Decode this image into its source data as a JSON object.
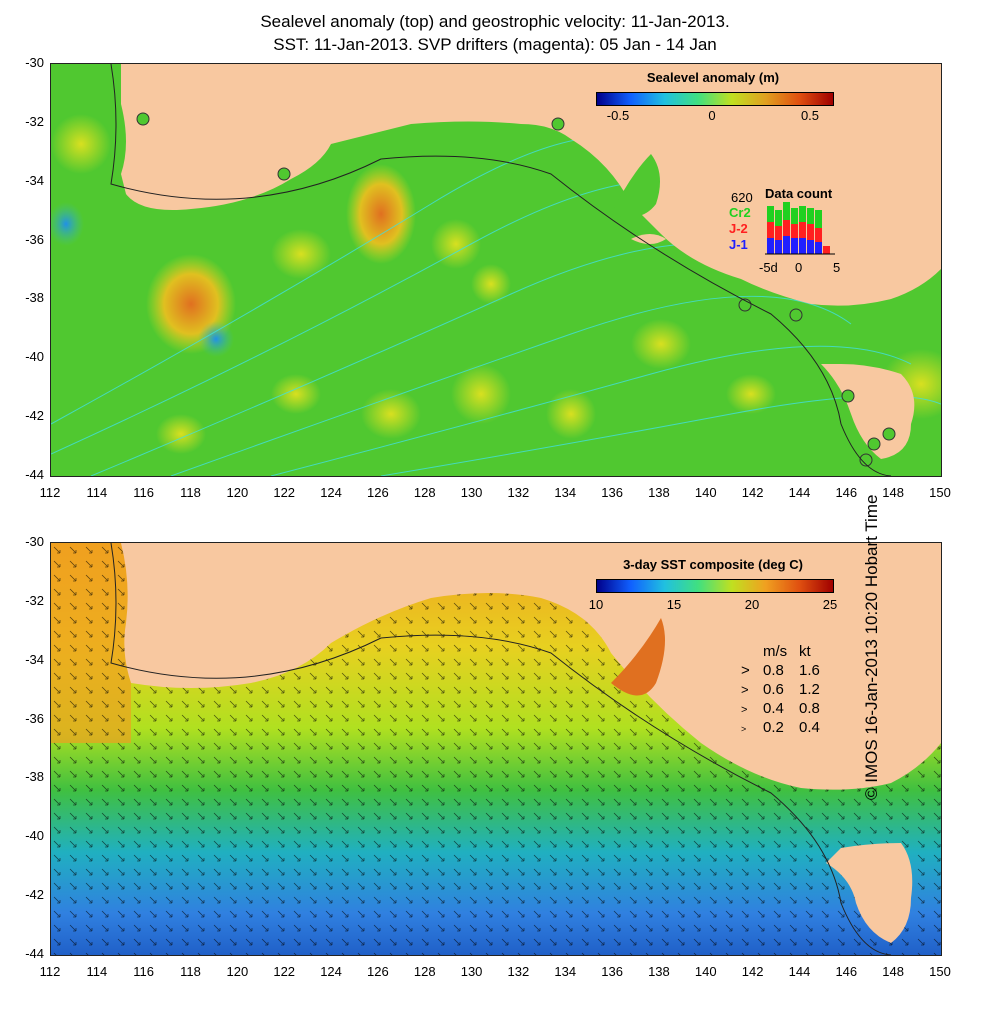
{
  "title_line1": "Sealevel anomaly (top) and geostrophic velocity: 11-Jan-2013.",
  "title_line2": "SST: 11-Jan-2013. SVP drifters (magenta): 05 Jan - 14 Jan",
  "credit": "© IMOS 16-Jan-2013 10:20 Hobart Time",
  "map": {
    "lon_ticks": [
      "112",
      "114",
      "116",
      "118",
      "120",
      "122",
      "124",
      "126",
      "128",
      "130",
      "132",
      "134",
      "136",
      "138",
      "140",
      "142",
      "144",
      "146",
      "148",
      "150"
    ],
    "lat_ticks": [
      "-30",
      "-32",
      "-34",
      "-36",
      "-38",
      "-40",
      "-42",
      "-44"
    ],
    "lon_range": [
      112,
      150
    ],
    "lat_range": [
      -44,
      -30
    ],
    "land_color": "#f8c8a0",
    "contour_color": "#40e0e0"
  },
  "sla_panel": {
    "colorbar_title": "Sealevel anomaly (m)",
    "colorbar_ticks": [
      "-0.5",
      "0",
      "0.5"
    ],
    "colorbar_range": [
      -0.6,
      0.6
    ],
    "data_count": {
      "title": "Data count",
      "max_label": "620",
      "series": [
        {
          "name": "Cr2",
          "color": "#20d020"
        },
        {
          "name": "J-2",
          "color": "#ff2020"
        },
        {
          "name": "J-1",
          "color": "#2020ff"
        }
      ],
      "x_ticks": [
        "-5d",
        "0",
        "5"
      ]
    }
  },
  "sst_panel": {
    "colorbar_title": "3-day SST composite (deg C)",
    "colorbar_ticks": [
      "10",
      "15",
      "20",
      "25"
    ],
    "colorbar_range": [
      10,
      25
    ],
    "velocity_legend": {
      "header_ms": "m/s",
      "header_kt": "kt",
      "rows": [
        {
          "ms": "0.8",
          "kt": "1.6"
        },
        {
          "ms": "0.6",
          "kt": "1.2"
        },
        {
          "ms": "0.4",
          "kt": "0.8"
        },
        {
          "ms": "0.2",
          "kt": "0.4"
        }
      ]
    }
  }
}
